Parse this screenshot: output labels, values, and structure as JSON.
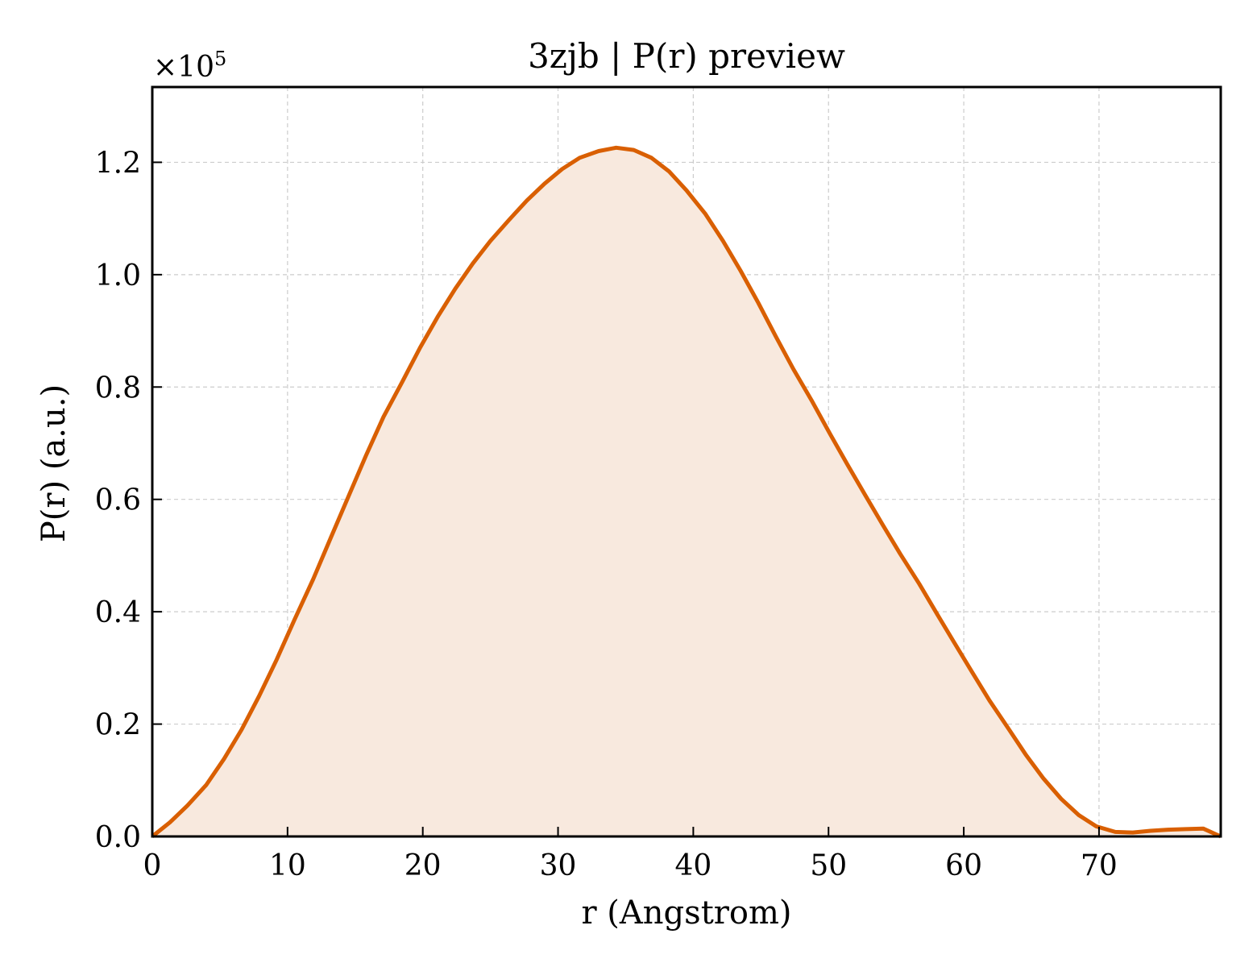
{
  "chart_data": {
    "type": "area",
    "title": "3zjb | P(r) preview",
    "xlabel": "r (Angstrom)",
    "ylabel": "P(r) (a.u.)",
    "y_offset_label": "×10",
    "y_offset_exponent": "5",
    "xlim": [
      0,
      79
    ],
    "ylim": [
      0,
      1.334
    ],
    "xticks": [
      0,
      10,
      20,
      30,
      40,
      50,
      60,
      70
    ],
    "xtick_labels": [
      "0",
      "10",
      "20",
      "30",
      "40",
      "50",
      "60",
      "70"
    ],
    "yticks": [
      0.0,
      0.2,
      0.4,
      0.6,
      0.8,
      1.0,
      1.2
    ],
    "ytick_labels": [
      "0.0",
      "0.2",
      "0.4",
      "0.6",
      "0.8",
      "1.0",
      "1.2"
    ],
    "grid": true,
    "line_color": "#d95f02",
    "fill_color": "#f8e9de",
    "series": [
      {
        "x": [
          0,
          1.3,
          2.6,
          4.0,
          5.3,
          6.6,
          7.9,
          9.2,
          10.5,
          11.9,
          13.2,
          14.5,
          15.8,
          17.1,
          18.5,
          19.8,
          21.1,
          22.4,
          23.7,
          25.0,
          26.4,
          27.7,
          29.0,
          30.3,
          31.6,
          33.0,
          34.3,
          35.6,
          36.9,
          38.2,
          39.5,
          40.9,
          42.2,
          43.5,
          44.8,
          46.1,
          47.4,
          48.8,
          50.1,
          51.4,
          52.7,
          54.0,
          55.3,
          56.7,
          58.0,
          59.3,
          60.6,
          61.9,
          63.3,
          64.6,
          65.9,
          67.2,
          68.5,
          69.8,
          71.2,
          72.5,
          73.8,
          75.1,
          76.4,
          77.7,
          79.0
        ],
        "values": [
          0.0,
          0.025,
          0.055,
          0.092,
          0.138,
          0.19,
          0.25,
          0.315,
          0.385,
          0.458,
          0.532,
          0.605,
          0.678,
          0.747,
          0.81,
          0.87,
          0.925,
          0.975,
          1.02,
          1.06,
          1.098,
          1.132,
          1.162,
          1.188,
          1.208,
          1.22,
          1.226,
          1.222,
          1.208,
          1.184,
          1.15,
          1.108,
          1.06,
          1.007,
          0.95,
          0.89,
          0.832,
          0.774,
          0.717,
          0.662,
          0.608,
          0.555,
          0.503,
          0.45,
          0.397,
          0.345,
          0.293,
          0.242,
          0.192,
          0.145,
          0.103,
          0.067,
          0.038,
          0.018,
          0.008,
          0.007,
          0.01,
          0.012,
          0.013,
          0.014,
          0.0
        ]
      }
    ]
  }
}
